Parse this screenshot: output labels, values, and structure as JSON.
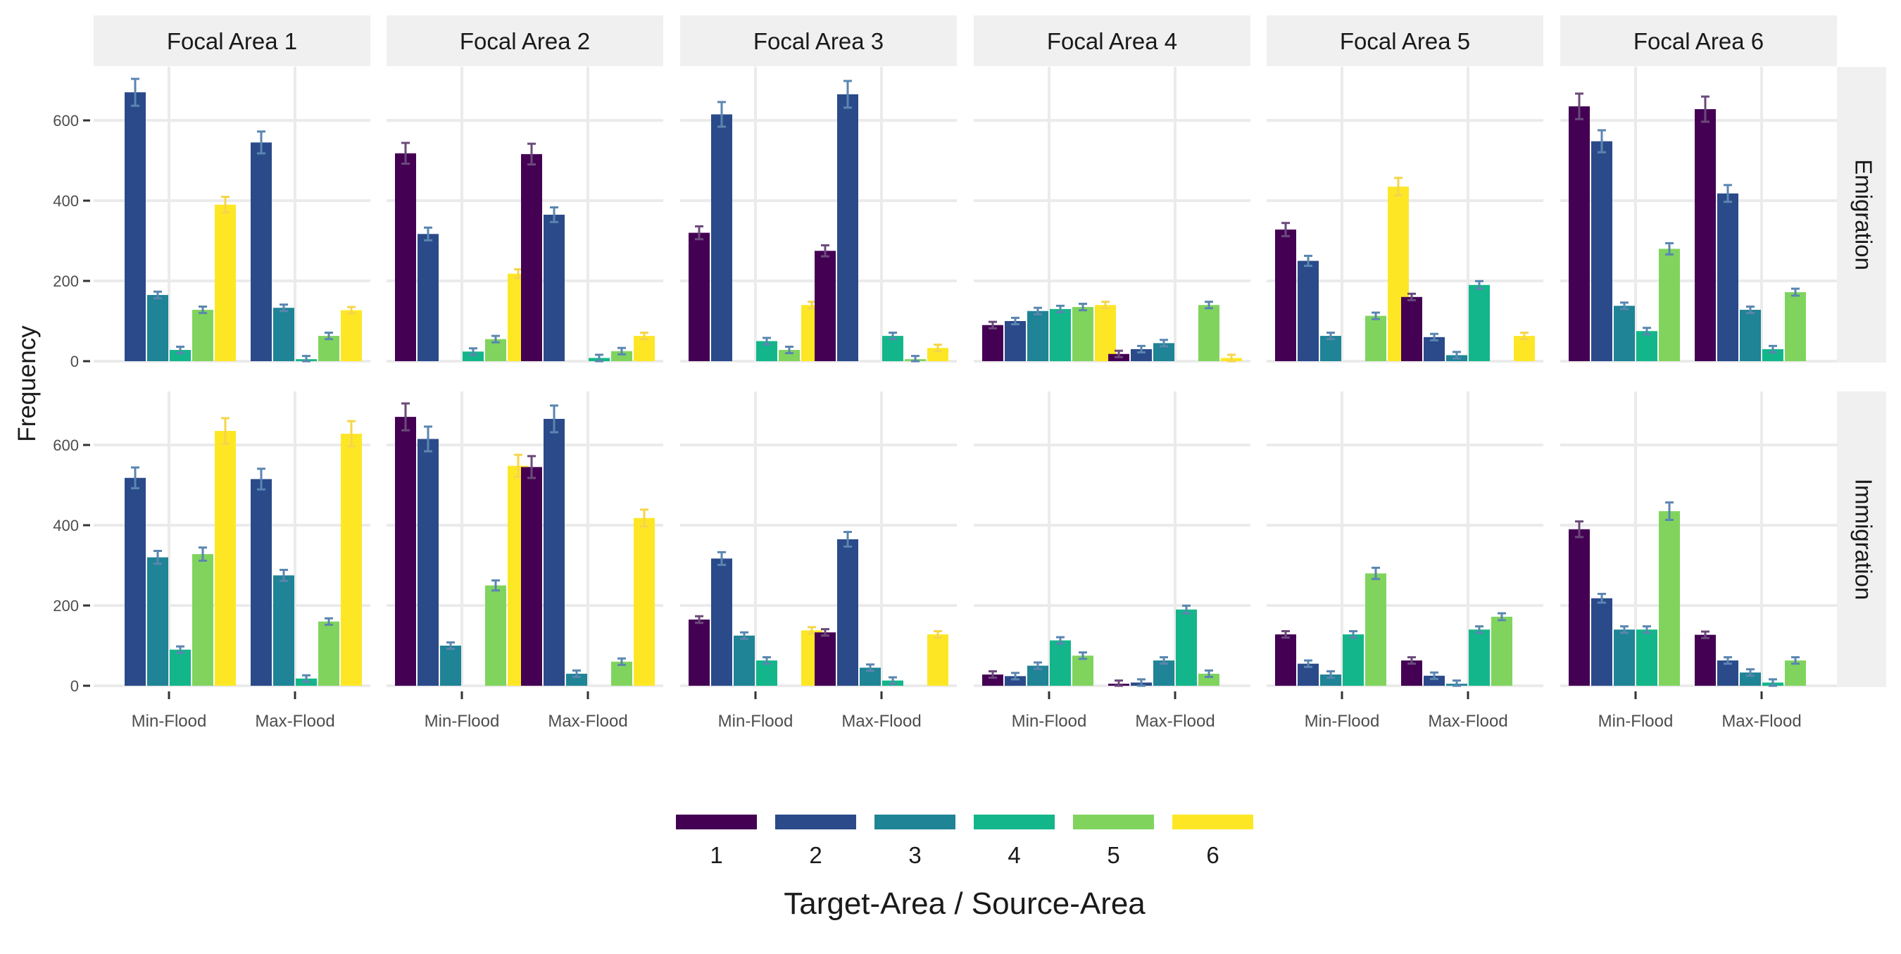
{
  "chart_data": {
    "type": "bar",
    "ylabel": "Frequency",
    "xlabel": "",
    "legend_title": "Target-Area / Source-Area",
    "legend_position": "bottom",
    "ylim": [
      0,
      700
    ],
    "y_ticks": [
      0,
      200,
      400,
      600
    ],
    "grid": true,
    "error_bars": true,
    "categories": [
      "Min-Flood",
      "Max-Flood"
    ],
    "series_names": [
      "1",
      "2",
      "3",
      "4",
      "5",
      "6"
    ],
    "colors": [
      "#440154",
      "#2A4A8A",
      "#1F8496",
      "#13B68A",
      "#80D45E",
      "#FDE725"
    ],
    "columns": [
      "Focal Area 1",
      "Focal Area 2",
      "Focal Area 3",
      "Focal Area 4",
      "Focal Area 5",
      "Focal Area 6"
    ],
    "rows": [
      "Emigration",
      "Immigration"
    ],
    "panels": [
      {
        "row": "Emigration",
        "column": "Focal Area 1",
        "values": {
          "Min-Flood": [
            null,
            670,
            165,
            28,
            128,
            390
          ],
          "Max-Flood": [
            null,
            545,
            133,
            5,
            63,
            127
          ]
        }
      },
      {
        "row": "Emigration",
        "column": "Focal Area 2",
        "values": {
          "Min-Flood": [
            518,
            317,
            null,
            24,
            55,
            218
          ],
          "Max-Flood": [
            516,
            365,
            null,
            8,
            25,
            63
          ]
        }
      },
      {
        "row": "Emigration",
        "column": "Focal Area 3",
        "values": {
          "Min-Flood": [
            320,
            615,
            null,
            50,
            28,
            140
          ],
          "Max-Flood": [
            275,
            665,
            null,
            63,
            5,
            33
          ]
        }
      },
      {
        "row": "Emigration",
        "column": "Focal Area 4",
        "values": {
          "Min-Flood": [
            90,
            100,
            125,
            130,
            135,
            140
          ],
          "Max-Flood": [
            18,
            30,
            45,
            null,
            140,
            8
          ]
        }
      },
      {
        "row": "Emigration",
        "column": "Focal Area 5",
        "values": {
          "Min-Flood": [
            328,
            250,
            63,
            null,
            113,
            435
          ],
          "Max-Flood": [
            160,
            60,
            15,
            190,
            null,
            63
          ]
        }
      },
      {
        "row": "Emigration",
        "column": "Focal Area 6",
        "values": {
          "Min-Flood": [
            635,
            548,
            138,
            75,
            280,
            null
          ],
          "Max-Flood": [
            628,
            418,
            128,
            30,
            172,
            null
          ]
        }
      },
      {
        "row": "Immigration",
        "column": "Focal Area 1",
        "values": {
          "Min-Flood": [
            null,
            518,
            320,
            90,
            328,
            635
          ],
          "Max-Flood": [
            null,
            515,
            275,
            18,
            160,
            628
          ]
        }
      },
      {
        "row": "Immigration",
        "column": "Focal Area 2",
        "values": {
          "Min-Flood": [
            670,
            615,
            100,
            null,
            250,
            548
          ],
          "Max-Flood": [
            545,
            665,
            30,
            null,
            60,
            418
          ]
        }
      },
      {
        "row": "Immigration",
        "column": "Focal Area 3",
        "values": {
          "Min-Flood": [
            165,
            317,
            125,
            63,
            null,
            138
          ],
          "Max-Flood": [
            133,
            365,
            45,
            13,
            null,
            128
          ]
        }
      },
      {
        "row": "Immigration",
        "column": "Focal Area 4",
        "values": {
          "Min-Flood": [
            28,
            24,
            50,
            113,
            75,
            null
          ],
          "Max-Flood": [
            5,
            8,
            63,
            190,
            30,
            null
          ]
        }
      },
      {
        "row": "Immigration",
        "column": "Focal Area 5",
        "values": {
          "Min-Flood": [
            128,
            55,
            28,
            128,
            280,
            null
          ],
          "Max-Flood": [
            63,
            25,
            5,
            140,
            172,
            null
          ]
        }
      },
      {
        "row": "Immigration",
        "column": "Focal Area 6",
        "values": {
          "Min-Flood": [
            390,
            218,
            140,
            140,
            435,
            null
          ],
          "Max-Flood": [
            127,
            63,
            33,
            8,
            63,
            null
          ]
        }
      }
    ]
  }
}
